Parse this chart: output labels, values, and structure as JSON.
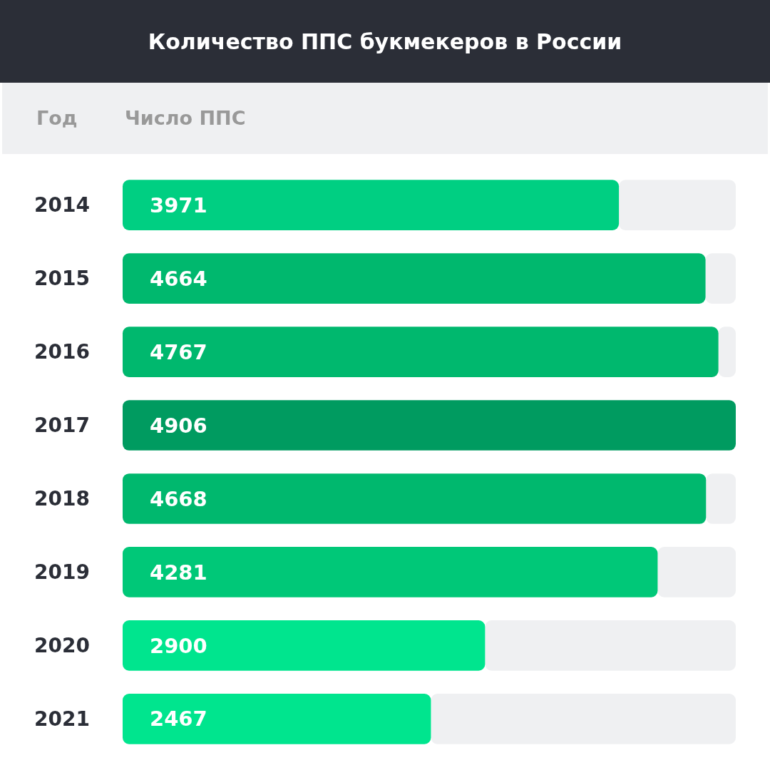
{
  "chart_data": {
    "type": "bar",
    "orientation": "horizontal",
    "title": "Количество ППС букмекеров в России",
    "ylabel": "Год",
    "xlabel": "Число ППС",
    "categories": [
      "2014",
      "2015",
      "2016",
      "2017",
      "2018",
      "2019",
      "2020",
      "2021"
    ],
    "values": [
      3971,
      4664,
      4767,
      4906,
      4668,
      4281,
      2900,
      2467
    ],
    "colors": [
      "#00cf82",
      "#00b86e",
      "#00b86e",
      "#009b60",
      "#00b86e",
      "#00c878",
      "#00e58e",
      "#00e58e"
    ],
    "xlim": [
      0,
      4906
    ],
    "tick_labels": "y",
    "data_labels": true
  }
}
